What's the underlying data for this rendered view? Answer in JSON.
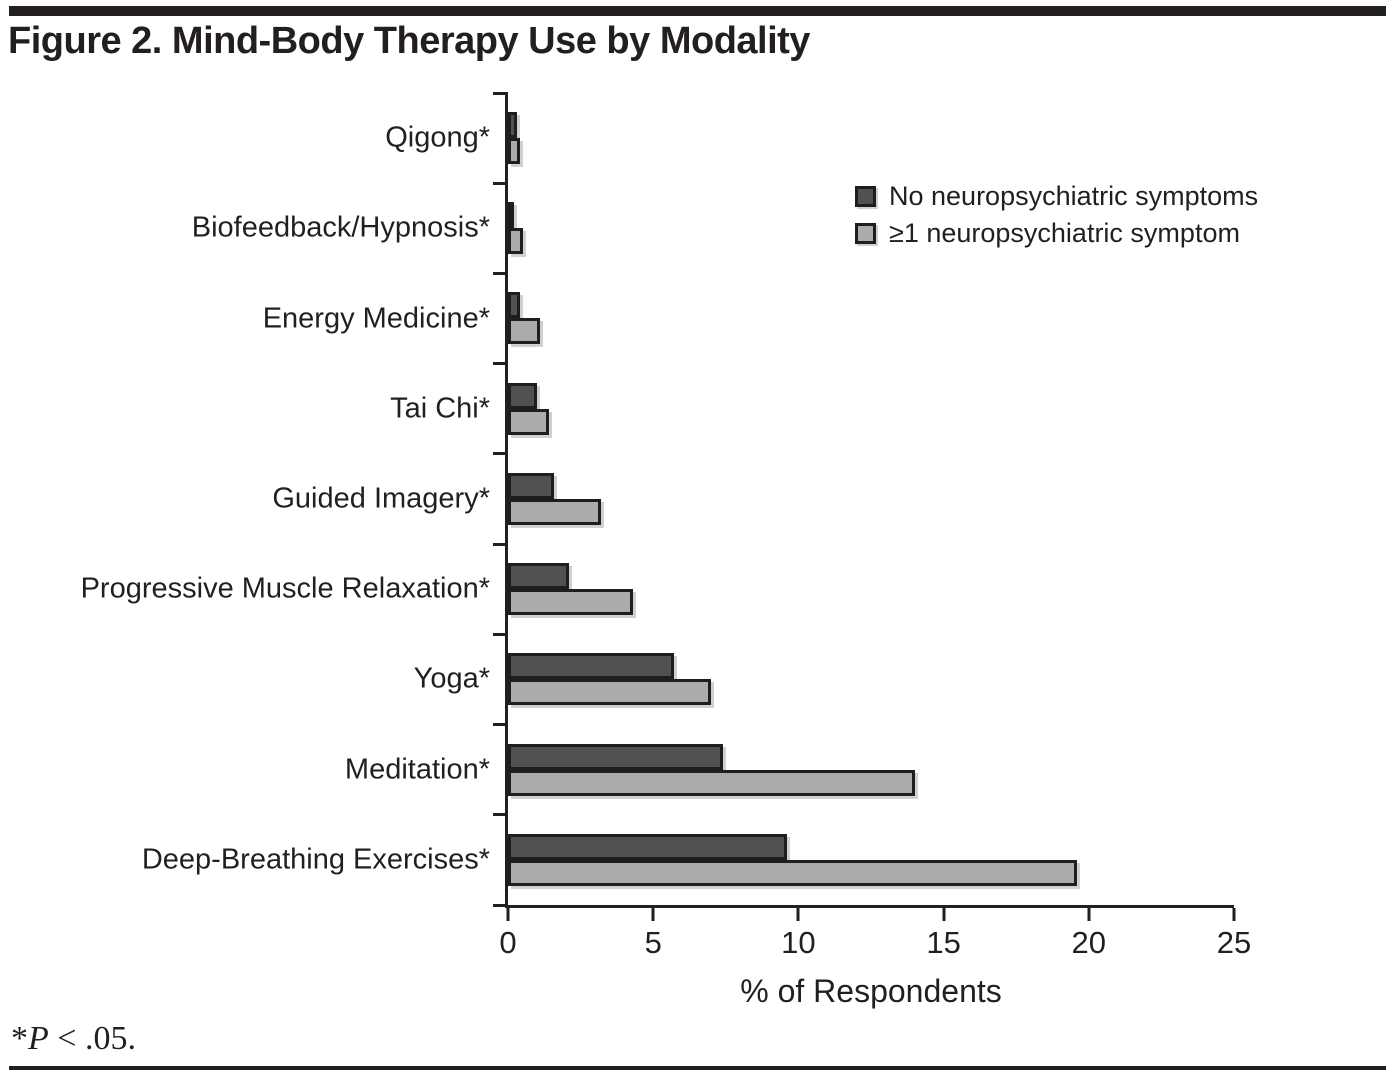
{
  "figure": {
    "title": "Figure 2. Mind-Body Therapy Use by Modality",
    "footnote": {
      "marker": "*",
      "p_symbol": "P",
      "rest": " < .05."
    }
  },
  "chart_data": {
    "type": "bar",
    "orientation": "horizontal",
    "title": "Figure 2. Mind-Body Therapy Use by Modality",
    "xlabel": "% of Respondents",
    "xlim": [
      0,
      25
    ],
    "xticks": [
      0,
      5,
      10,
      15,
      20,
      25
    ],
    "grid": false,
    "legend_position": "top-right",
    "axis_color": "#231f20",
    "categories": [
      "Qigong*",
      "Biofeedback/Hypnosis*",
      "Energy Medicine*",
      "Tai Chi*",
      "Guided Imagery*",
      "Progressive Muscle Relaxation*",
      "Yoga*",
      "Meditation*",
      "Deep-Breathing Exercises*"
    ],
    "series": [
      {
        "name": "No neuropsychiatric symptoms",
        "color": "#515153",
        "values": [
          0.3,
          0.2,
          0.4,
          1.0,
          1.6,
          2.1,
          5.7,
          7.4,
          9.6
        ]
      },
      {
        "name": "≥1 neuropsychiatric symptom",
        "color": "#a9abad",
        "values": [
          0.4,
          0.5,
          1.1,
          1.4,
          3.2,
          4.3,
          7.0,
          14.0,
          19.6
        ]
      }
    ]
  }
}
